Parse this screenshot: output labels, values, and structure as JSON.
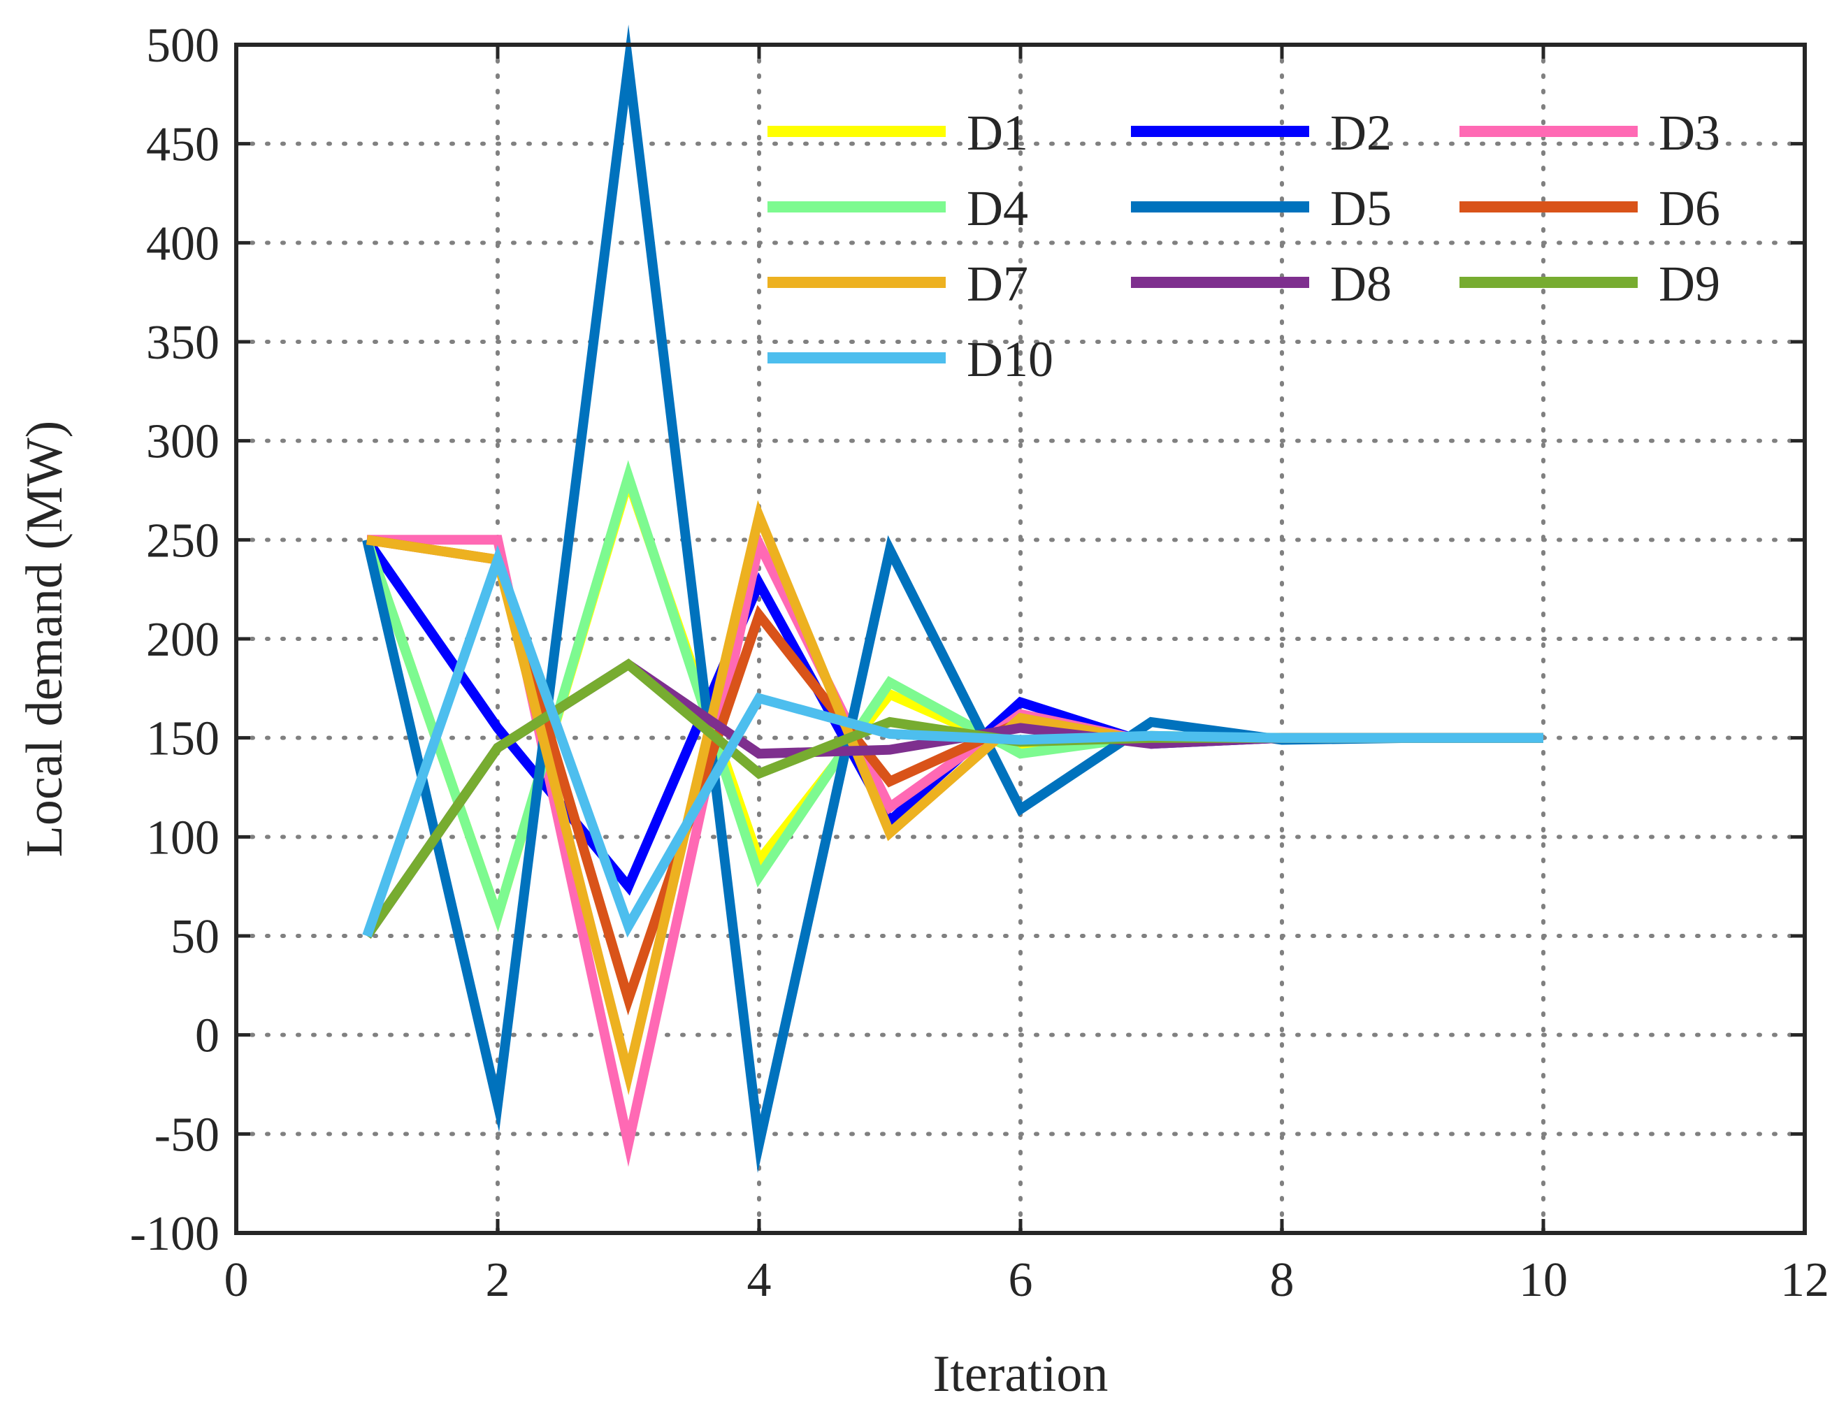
{
  "chart_data": {
    "type": "line",
    "title": "",
    "xlabel": "Iteration",
    "ylabel": "Local demand (MW)",
    "xlim": [
      0,
      12
    ],
    "ylim": [
      -100,
      500
    ],
    "xticks": [
      0,
      2,
      4,
      6,
      8,
      10,
      12
    ],
    "yticks": [
      -100,
      -50,
      0,
      50,
      100,
      150,
      200,
      250,
      300,
      350,
      400,
      450,
      500
    ],
    "grid": true,
    "legend_position": "top-right",
    "x": [
      1,
      2,
      3,
      4,
      5,
      6,
      7,
      8,
      9,
      10
    ],
    "series": [
      {
        "name": "D1",
        "color": "#FFFF00",
        "values": [
          250,
          60,
          280,
          88,
          172,
          143,
          151,
          150,
          150,
          150
        ]
      },
      {
        "name": "D2",
        "color": "#0000FF",
        "values": [
          250,
          155,
          75,
          228,
          108,
          168,
          147,
          150,
          150,
          150
        ]
      },
      {
        "name": "D3",
        "color": "#FF69B4",
        "values": [
          250,
          250,
          -55,
          248,
          115,
          162,
          148,
          150,
          150,
          150
        ]
      },
      {
        "name": "D4",
        "color": "#7DFA90",
        "values": [
          250,
          60,
          282,
          80,
          178,
          142,
          151,
          150,
          150,
          150
        ]
      },
      {
        "name": "D5",
        "color": "#0072BD",
        "values": [
          250,
          -35,
          490,
          -55,
          245,
          114,
          158,
          149,
          150,
          150
        ]
      },
      {
        "name": "D6",
        "color": "#D95319",
        "values": [
          250,
          240,
          18,
          212,
          128,
          158,
          148,
          150,
          150,
          150
        ]
      },
      {
        "name": "D7",
        "color": "#EDB120",
        "values": [
          250,
          240,
          -20,
          262,
          102,
          160,
          148,
          150,
          150,
          150
        ]
      },
      {
        "name": "D8",
        "color": "#7E2F8E",
        "values": [
          50,
          145,
          187,
          142,
          144,
          155,
          147,
          150,
          150,
          150
        ]
      },
      {
        "name": "D9",
        "color": "#77AC30",
        "values": [
          50,
          145,
          187,
          132,
          158,
          148,
          150,
          150,
          150,
          150
        ]
      },
      {
        "name": "D10",
        "color": "#4DBEEE",
        "values": [
          50,
          240,
          55,
          170,
          152,
          149,
          151,
          150,
          150,
          150
        ]
      }
    ]
  }
}
